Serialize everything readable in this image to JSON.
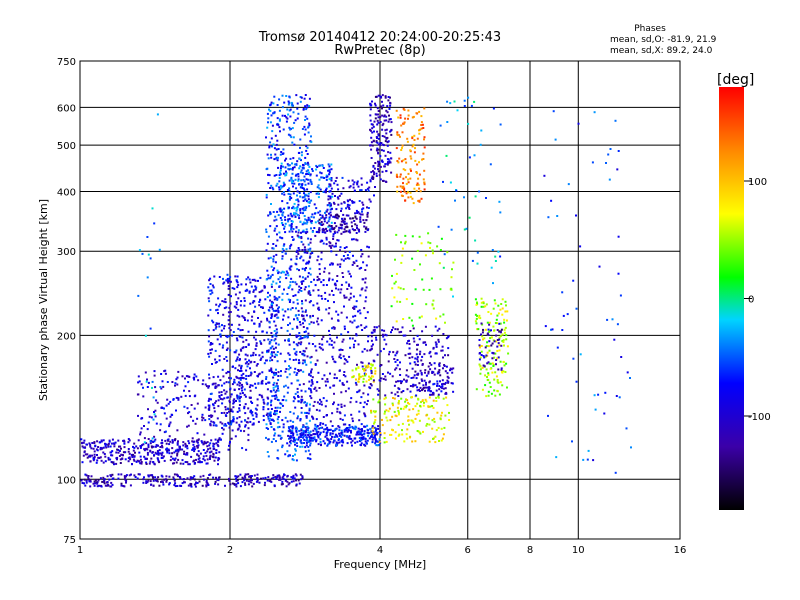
{
  "chart_data": {
    "type": "scatter",
    "title": "Tromsø 20140412 20:24:00-20:25:43",
    "subtitle": "RwPretec (8p)",
    "xlabel": "Frequency [MHz]",
    "ylabel": "Stationary phase Virtual Height [km]",
    "x_scale": "log",
    "y_scale": "log",
    "xlim": [
      1,
      16
    ],
    "ylim": [
      75,
      750
    ],
    "x_ticks": [
      1,
      2,
      4,
      6,
      8,
      10,
      16
    ],
    "y_ticks": [
      75,
      100,
      200,
      300,
      400,
      500,
      600,
      750
    ],
    "x_gridlines": [
      2,
      4,
      6,
      8,
      10
    ],
    "y_gridlines": [
      100,
      200,
      300,
      400,
      500,
      600
    ],
    "grid": true,
    "colorbar": {
      "label": "[deg]",
      "range": [
        -180,
        180
      ],
      "ticks": [
        100,
        0,
        -100
      ]
    },
    "stats": {
      "title": "Phases",
      "line1": "mean, sd,O:  -81.9, 21.9",
      "line2": "mean, sd,X:  89.2, 24.0"
    },
    "clusters": [
      {
        "x": [
          1.0,
          1.9
        ],
        "y": [
          108,
          122
        ],
        "phase": -105,
        "n": 380
      },
      {
        "x": [
          1.0,
          2.8
        ],
        "y": [
          97,
          103
        ],
        "phase": -110,
        "n": 300
      },
      {
        "x": [
          1.3,
          2.2
        ],
        "y": [
          115,
          170
        ],
        "phase": -95,
        "n": 260
      },
      {
        "x": [
          1.8,
          2.5
        ],
        "y": [
          130,
          270
        ],
        "phase": -85,
        "n": 520
      },
      {
        "x": [
          2.35,
          2.9
        ],
        "y": [
          110,
          640
        ],
        "phase": -60,
        "n": 700
      },
      {
        "x": [
          2.7,
          3.8
        ],
        "y": [
          130,
          330
        ],
        "phase": -95,
        "n": 480
      },
      {
        "x": [
          2.5,
          3.2
        ],
        "y": [
          330,
          460
        ],
        "phase": -55,
        "n": 260
      },
      {
        "x": [
          3.0,
          3.8
        ],
        "y": [
          330,
          360
        ],
        "phase": -120,
        "n": 110
      },
      {
        "x": [
          3.1,
          3.9
        ],
        "y": [
          360,
          430
        ],
        "phase": -90,
        "n": 90
      },
      {
        "x": [
          2.6,
          4.0
        ],
        "y": [
          118,
          130
        ],
        "phase": -70,
        "n": 320
      },
      {
        "x": [
          3.5,
          3.9
        ],
        "y": [
          160,
          175
        ],
        "phase": 70,
        "n": 50
      },
      {
        "x": [
          3.8,
          4.2
        ],
        "y": [
          420,
          640
        ],
        "phase": -110,
        "n": 170
      },
      {
        "x": [
          4.3,
          4.9
        ],
        "y": [
          380,
          600
        ],
        "phase": 130,
        "n": 130
      },
      {
        "x": [
          3.8,
          5.5
        ],
        "y": [
          120,
          150
        ],
        "phase": 75,
        "n": 160
      },
      {
        "x": [
          3.8,
          5.5
        ],
        "y": [
          150,
          210
        ],
        "phase": -105,
        "n": 210
      },
      {
        "x": [
          4.5,
          5.6
        ],
        "y": [
          150,
          175
        ],
        "phase": -100,
        "n": 80
      },
      {
        "x": [
          4.2,
          5.6
        ],
        "y": [
          210,
          330
        ],
        "phase": 50,
        "n": 70
      },
      {
        "x": [
          6.2,
          7.2
        ],
        "y": [
          150,
          240
        ],
        "phase": 55,
        "n": 150
      },
      {
        "x": [
          6.3,
          7.0
        ],
        "y": [
          170,
          215
        ],
        "phase": -110,
        "n": 50
      },
      {
        "x": [
          5.2,
          7.0
        ],
        "y": [
          240,
          640
        ],
        "phase": -30,
        "n": 50
      },
      {
        "x": [
          8.5,
          13.0
        ],
        "y": [
          100,
          620
        ],
        "phase": -60,
        "n": 60
      },
      {
        "x": [
          1.3,
          1.45
        ],
        "y": [
          110,
          660
        ],
        "phase": -40,
        "n": 25
      }
    ]
  }
}
